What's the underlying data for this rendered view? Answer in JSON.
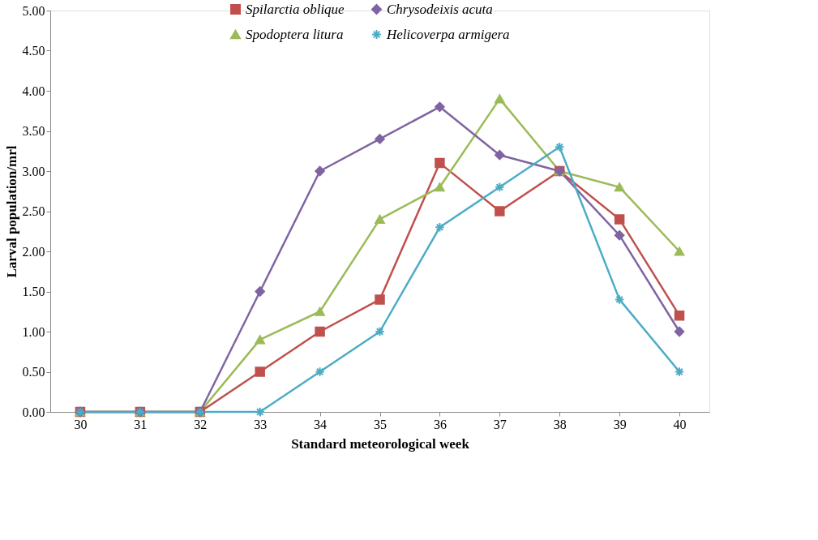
{
  "chart_data": {
    "type": "line",
    "xlabel": "Standard meteorological week",
    "ylabel": "Larval population/mrl",
    "categories": [
      "30",
      "31",
      "32",
      "33",
      "34",
      "35",
      "36",
      "37",
      "38",
      "39",
      "40"
    ],
    "series": [
      {
        "name": "Spilarctia oblique",
        "color": "#c0504d",
        "marker": "square",
        "values": [
          0,
          0,
          0,
          0.5,
          1.0,
          1.4,
          3.1,
          2.5,
          3.0,
          2.4,
          1.2
        ]
      },
      {
        "name": "Spodoptera litura",
        "color": "#9bbb59",
        "marker": "triangle",
        "values": [
          0,
          0,
          0,
          0.9,
          1.25,
          2.4,
          2.8,
          3.9,
          3.0,
          2.8,
          2.0
        ]
      },
      {
        "name": "Chrysodeixis acuta",
        "color": "#8064a2",
        "marker": "diamond",
        "values": [
          0,
          0,
          0,
          1.5,
          3.0,
          3.4,
          3.8,
          3.2,
          3.0,
          2.2,
          1.0
        ]
      },
      {
        "name": "Helicoverpa armigera",
        "color": "#4bacc6",
        "marker": "cross",
        "values": [
          0,
          0,
          0,
          0,
          0.5,
          1.0,
          2.3,
          2.8,
          3.3,
          1.4,
          0.5
        ]
      }
    ],
    "ylim": [
      0,
      5
    ],
    "yticks": [
      {
        "value": 0,
        "label": "0.00"
      },
      {
        "value": 0.5,
        "label": "0.50"
      },
      {
        "value": 1,
        "label": "1.00"
      },
      {
        "value": 1.5,
        "label": "1.50"
      },
      {
        "value": 2,
        "label": "2.00"
      },
      {
        "value": 2.5,
        "label": "2.50"
      },
      {
        "value": 3,
        "label": "3.00"
      },
      {
        "value": 3.5,
        "label": "3.50"
      },
      {
        "value": 4,
        "label": "4.00"
      },
      {
        "value": 4.5,
        "label": "4.50"
      },
      {
        "value": 5,
        "label": "5.00"
      }
    ],
    "grid": false,
    "legend": "top",
    "line_style": "solid"
  }
}
